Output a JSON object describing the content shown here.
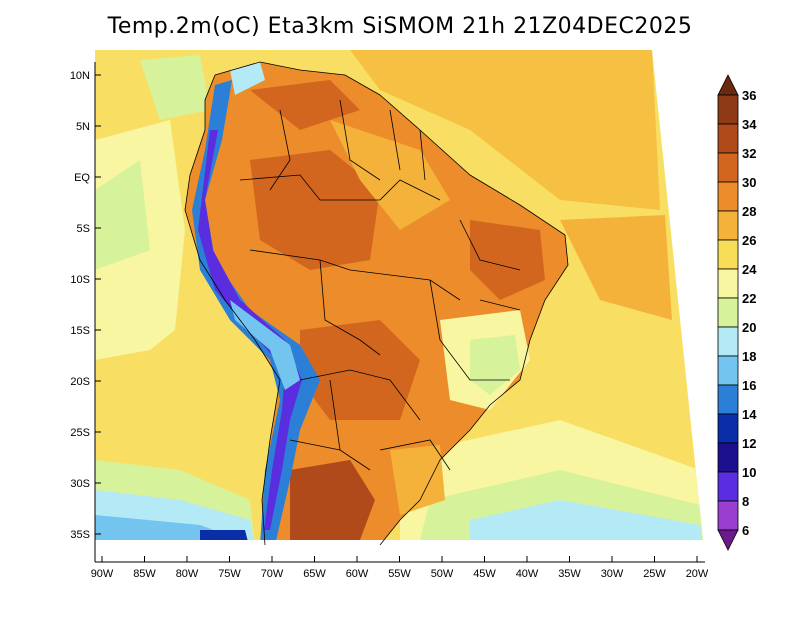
{
  "title": "Temp.2m(oC) Eta3km SiSMOM 21h 21Z04DEC2025",
  "map": {
    "lat_labels": [
      "10N",
      "5N",
      "EQ",
      "5S",
      "10S",
      "15S",
      "20S",
      "25S",
      "30S",
      "35S"
    ],
    "lon_labels": [
      "90W",
      "85W",
      "80W",
      "75W",
      "70W",
      "65W",
      "60W",
      "55W",
      "50W",
      "45W",
      "40W",
      "35W",
      "30W",
      "25W",
      "20W"
    ]
  },
  "colorbar": {
    "levels": [
      "36",
      "34",
      "32",
      "30",
      "28",
      "26",
      "24",
      "22",
      "20",
      "18",
      "16",
      "14",
      "12",
      "10",
      "8",
      "6"
    ],
    "colors": [
      "#6b2a0e",
      "#8e3a14",
      "#b04a1a",
      "#d2661f",
      "#ec8c2a",
      "#f5b23a",
      "#f8dd58",
      "#f8f6a0",
      "#d6f29a",
      "#b4eaf5",
      "#73c4ee",
      "#2b7fd6",
      "#0a2da8",
      "#1c108f",
      "#5a2ee0",
      "#9a3ed0",
      "#6a1a8a"
    ]
  }
}
